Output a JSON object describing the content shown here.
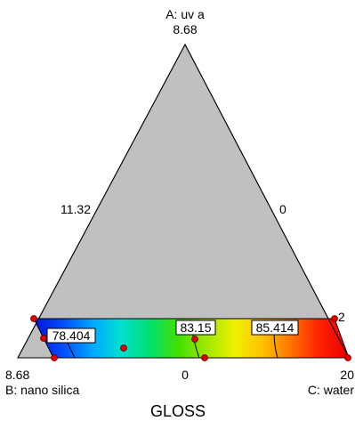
{
  "chart_data": {
    "type": "ternary-contour",
    "title": "GLOSS",
    "vertices": {
      "top": {
        "name": "A: uv a",
        "value": "8.68"
      },
      "left": {
        "name": "B: nano silica",
        "value": "8.68"
      },
      "right": {
        "name": "C: water",
        "value": "20"
      }
    },
    "edge_labels": {
      "left_mid": "11.32",
      "right_mid": "0",
      "right_low": "2",
      "bottom_mid": "0"
    },
    "colorscale": [
      "#0018e0",
      "#0050ff",
      "#00a8ff",
      "#00e0d0",
      "#00e070",
      "#40e000",
      "#a0e800",
      "#f0f000",
      "#ffc000",
      "#ff7000",
      "#ff2000",
      "#e80000"
    ],
    "contours": [
      {
        "label": "78.404",
        "value": 78.404
      },
      {
        "label": "83.15",
        "value": 83.15
      },
      {
        "label": "85.414",
        "value": 85.414
      }
    ],
    "design_points_count": 8
  }
}
